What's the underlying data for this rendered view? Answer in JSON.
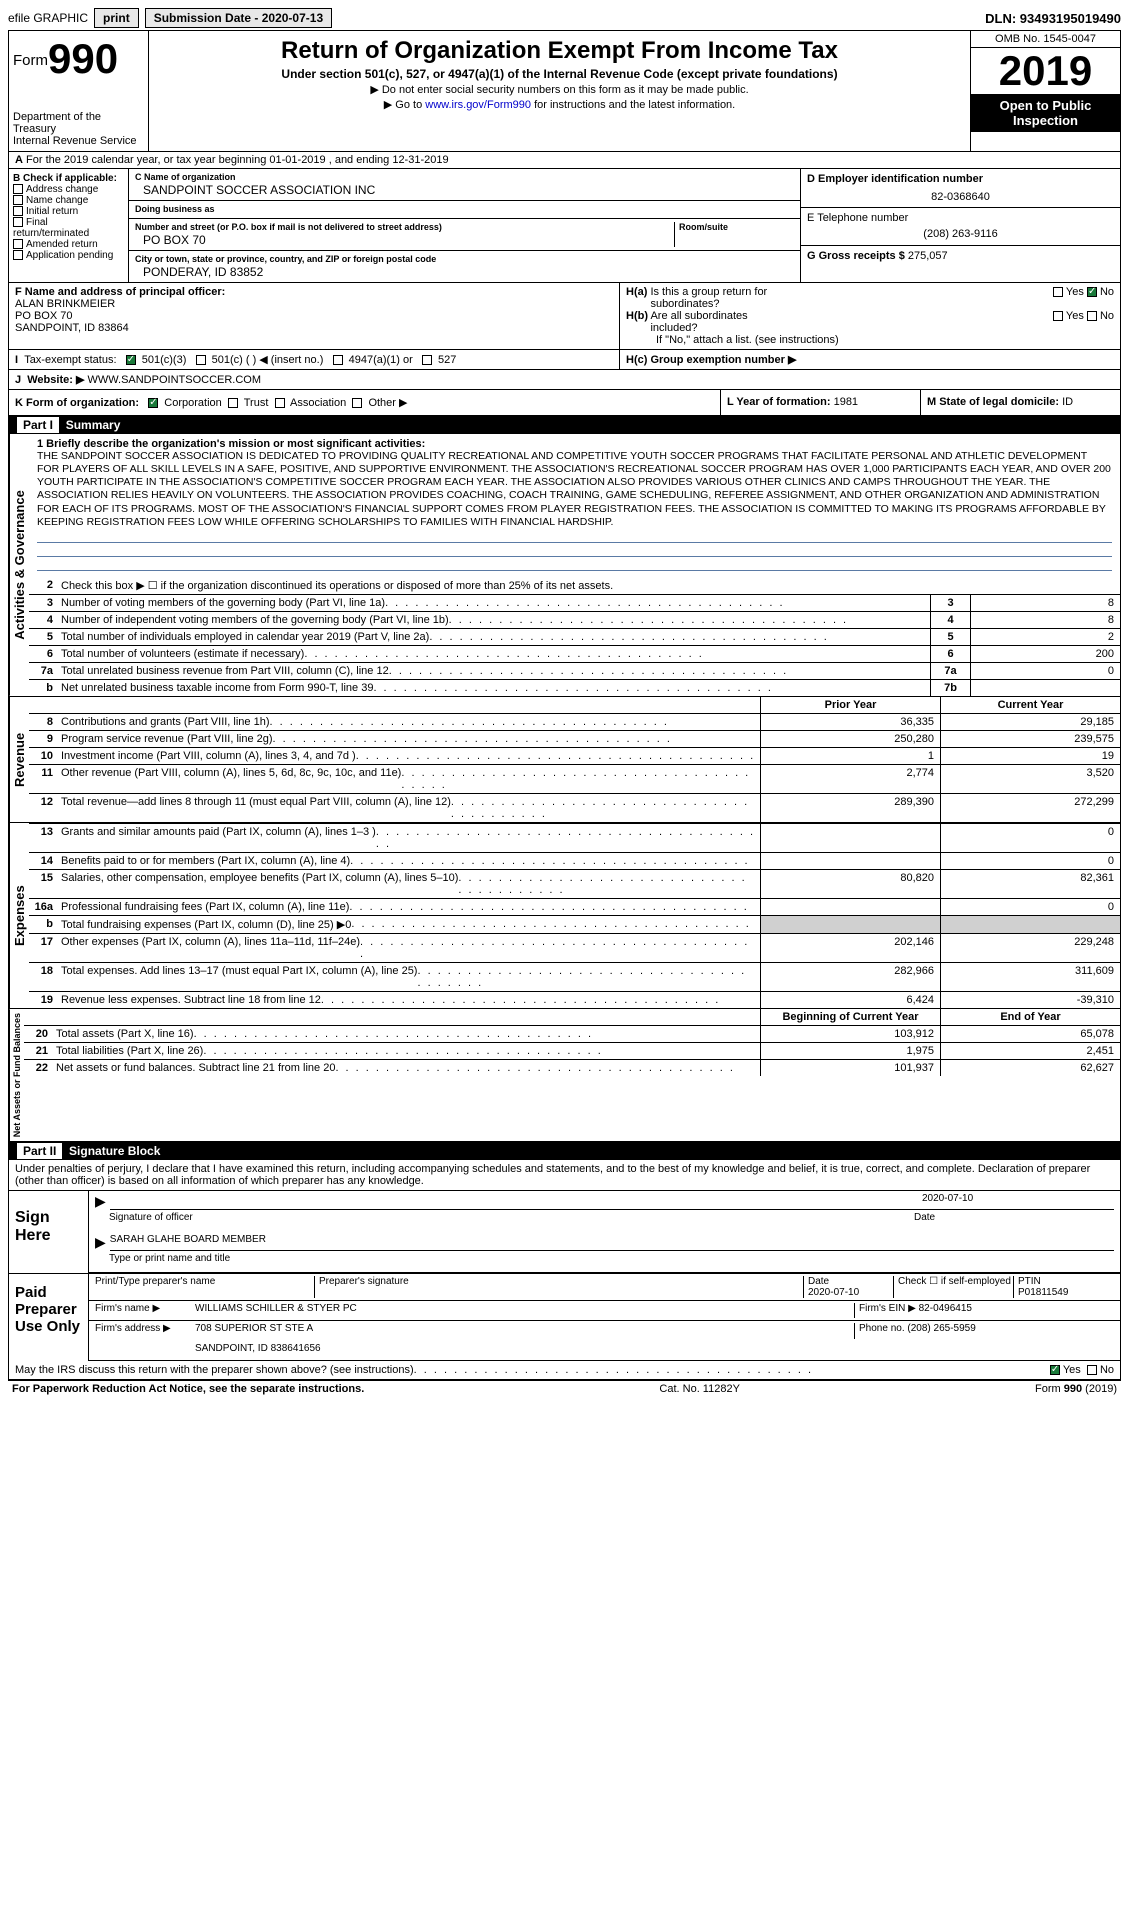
{
  "topbar": {
    "efile": "efile GRAPHIC",
    "print": "print",
    "sub_label": "Submission Date - ",
    "sub_date": "2020-07-13",
    "dln": "DLN: 93493195019490"
  },
  "header": {
    "form_prefix": "Form",
    "form_num": "990",
    "dept": "Department of the Treasury\nInternal Revenue Service",
    "title": "Return of Organization Exempt From Income Tax",
    "subtitle": "Under section 501(c), 527, or 4947(a)(1) of the Internal Revenue Code (except private foundations)",
    "note1": "▶ Do not enter social security numbers on this form as it may be made public.",
    "note2_pre": "▶ Go to ",
    "note2_link": "www.irs.gov/Form990",
    "note2_post": " for instructions and the latest information.",
    "omb": "OMB No. 1545-0047",
    "year": "2019",
    "inspect": "Open to Public Inspection"
  },
  "rowA": {
    "text": "For the 2019 calendar year, or tax year beginning 01-01-2019   , and ending 12-31-2019",
    "prefix": "A"
  },
  "colB": {
    "title": "B Check if applicable:",
    "opts": [
      "Address change",
      "Name change",
      "Initial return",
      "Final return/terminated",
      "Amended return",
      "Application pending"
    ]
  },
  "colC": {
    "name_lbl": "C Name of organization",
    "name": "SANDPOINT SOCCER ASSOCIATION INC",
    "dba_lbl": "Doing business as",
    "dba": "",
    "addr_lbl": "Number and street (or P.O. box if mail is not delivered to street address)",
    "addr": "PO BOX 70",
    "room_lbl": "Room/suite",
    "city_lbl": "City or town, state or province, country, and ZIP or foreign postal code",
    "city": "PONDERAY, ID  83852"
  },
  "colD": {
    "ein_lbl": "D Employer identification number",
    "ein": "82-0368640",
    "tel_lbl": "E Telephone number",
    "tel": "(208) 263-9116",
    "gross_lbl": "G Gross receipts $",
    "gross": "275,057"
  },
  "rowF": {
    "lbl": "F  Name and address of principal officer:",
    "name": "ALAN BRINKMEIER",
    "addr1": "PO BOX 70",
    "addr2": "SANDPOINT, ID  83864"
  },
  "rowH": {
    "ha": "H(a)  Is this a group return for subordinates?",
    "hb": "H(b)  Are all subordinates included?",
    "hb_note": "If \"No,\" attach a list. (see instructions)",
    "hc": "H(c)  Group exemption number ▶",
    "yes": "Yes",
    "no": "No"
  },
  "rowI": {
    "lbl": "Tax-exempt status:",
    "o1": "501(c)(3)",
    "o2": "501(c) (   ) ◀ (insert no.)",
    "o3": "4947(a)(1) or",
    "o4": "527"
  },
  "rowJ": {
    "lbl": "Website: ▶",
    "val": "WWW.SANDPOINTSOCCER.COM"
  },
  "rowK": {
    "lbl": "K Form of organization:",
    "o1": "Corporation",
    "o2": "Trust",
    "o3": "Association",
    "o4": "Other ▶"
  },
  "rowL": {
    "lbl": "L Year of formation:",
    "val": "1981"
  },
  "rowM": {
    "lbl": "M State of legal domicile:",
    "val": "ID"
  },
  "part1": {
    "num": "Part I",
    "title": "Summary"
  },
  "mission": {
    "lbl": "1  Briefly describe the organization's mission or most significant activities:",
    "text": "THE SANDPOINT SOCCER ASSOCIATION IS DEDICATED TO PROVIDING QUALITY RECREATIONAL AND COMPETITIVE YOUTH SOCCER PROGRAMS THAT FACILITATE PERSONAL AND ATHLETIC DEVELOPMENT FOR PLAYERS OF ALL SKILL LEVELS IN A SAFE, POSITIVE, AND SUPPORTIVE ENVIRONMENT. THE ASSOCIATION'S RECREATIONAL SOCCER PROGRAM HAS OVER 1,000 PARTICIPANTS EACH YEAR, AND OVER 200 YOUTH PARTICIPATE IN THE ASSOCIATION'S COMPETITIVE SOCCER PROGRAM EACH YEAR. THE ASSOCIATION ALSO PROVIDES VARIOUS OTHER CLINICS AND CAMPS THROUGHOUT THE YEAR. THE ASSOCIATION RELIES HEAVILY ON VOLUNTEERS. THE ASSOCIATION PROVIDES COACHING, COACH TRAINING, GAME SCHEDULING, REFEREE ASSIGNMENT, AND OTHER ORGANIZATION AND ADMINISTRATION FOR EACH OF ITS PROGRAMS. MOST OF THE ASSOCIATION'S FINANCIAL SUPPORT COMES FROM PLAYER REGISTRATION FEES. THE ASSOCIATION IS COMMITTED TO MAKING ITS PROGRAMS AFFORDABLE BY KEEPING REGISTRATION FEES LOW WHILE OFFERING SCHOLARSHIPS TO FAMILIES WITH FINANCIAL HARDSHIP."
  },
  "line2": "Check this box ▶ ☐ if the organization discontinued its operations or disposed of more than 25% of its net assets.",
  "gov_lines": [
    {
      "n": "3",
      "d": "Number of voting members of the governing body (Part VI, line 1a)",
      "box": "3",
      "v": "8"
    },
    {
      "n": "4",
      "d": "Number of independent voting members of the governing body (Part VI, line 1b)",
      "box": "4",
      "v": "8"
    },
    {
      "n": "5",
      "d": "Total number of individuals employed in calendar year 2019 (Part V, line 2a)",
      "box": "5",
      "v": "2"
    },
    {
      "n": "6",
      "d": "Total number of volunteers (estimate if necessary)",
      "box": "6",
      "v": "200"
    },
    {
      "n": "7a",
      "d": "Total unrelated business revenue from Part VIII, column (C), line 12",
      "box": "7a",
      "v": "0"
    },
    {
      "n": "b",
      "d": "Net unrelated business taxable income from Form 990-T, line 39",
      "box": "7b",
      "v": ""
    }
  ],
  "rev_hdr": {
    "prior": "Prior Year",
    "curr": "Current Year"
  },
  "rev_lines": [
    {
      "n": "8",
      "d": "Contributions and grants (Part VIII, line 1h)",
      "p": "36,335",
      "c": "29,185"
    },
    {
      "n": "9",
      "d": "Program service revenue (Part VIII, line 2g)",
      "p": "250,280",
      "c": "239,575"
    },
    {
      "n": "10",
      "d": "Investment income (Part VIII, column (A), lines 3, 4, and 7d )",
      "p": "1",
      "c": "19"
    },
    {
      "n": "11",
      "d": "Other revenue (Part VIII, column (A), lines 5, 6d, 8c, 9c, 10c, and 11e)",
      "p": "2,774",
      "c": "3,520"
    },
    {
      "n": "12",
      "d": "Total revenue—add lines 8 through 11 (must equal Part VIII, column (A), line 12)",
      "p": "289,390",
      "c": "272,299"
    }
  ],
  "exp_lines": [
    {
      "n": "13",
      "d": "Grants and similar amounts paid (Part IX, column (A), lines 1–3 )",
      "p": "",
      "c": "0"
    },
    {
      "n": "14",
      "d": "Benefits paid to or for members (Part IX, column (A), line 4)",
      "p": "",
      "c": "0"
    },
    {
      "n": "15",
      "d": "Salaries, other compensation, employee benefits (Part IX, column (A), lines 5–10)",
      "p": "80,820",
      "c": "82,361"
    },
    {
      "n": "16a",
      "d": "Professional fundraising fees (Part IX, column (A), line 11e)",
      "p": "",
      "c": "0"
    },
    {
      "n": "b",
      "d": "Total fundraising expenses (Part IX, column (D), line 25) ▶0",
      "p": "SHADE",
      "c": "SHADE"
    },
    {
      "n": "17",
      "d": "Other expenses (Part IX, column (A), lines 11a–11d, 11f–24e)",
      "p": "202,146",
      "c": "229,248"
    },
    {
      "n": "18",
      "d": "Total expenses. Add lines 13–17 (must equal Part IX, column (A), line 25)",
      "p": "282,966",
      "c": "311,609"
    },
    {
      "n": "19",
      "d": "Revenue less expenses. Subtract line 18 from line 12",
      "p": "6,424",
      "c": "-39,310"
    }
  ],
  "na_hdr": {
    "beg": "Beginning of Current Year",
    "end": "End of Year"
  },
  "na_lines": [
    {
      "n": "20",
      "d": "Total assets (Part X, line 16)",
      "p": "103,912",
      "c": "65,078"
    },
    {
      "n": "21",
      "d": "Total liabilities (Part X, line 26)",
      "p": "1,975",
      "c": "2,451"
    },
    {
      "n": "22",
      "d": "Net assets or fund balances. Subtract line 21 from line 20",
      "p": "101,937",
      "c": "62,627"
    }
  ],
  "vlabels": {
    "gov": "Activities & Governance",
    "rev": "Revenue",
    "exp": "Expenses",
    "na": "Net Assets or Fund Balances"
  },
  "part2": {
    "num": "Part II",
    "title": "Signature Block"
  },
  "sig_decl": "Under penalties of perjury, I declare that I have examined this return, including accompanying schedules and statements, and to the best of my knowledge and belief, it is true, correct, and complete. Declaration of preparer (other than officer) is based on all information of which preparer has any knowledge.",
  "sign": {
    "here": "Sign Here",
    "officer_lbl": "Signature of officer",
    "date_lbl": "Date",
    "date": "2020-07-10",
    "name": "SARAH GLAHE  BOARD MEMBER",
    "name_lbl": "Type or print name and title"
  },
  "prep": {
    "title": "Paid Preparer Use Only",
    "name_lbl": "Print/Type preparer's name",
    "sig_lbl": "Preparer's signature",
    "date_lbl": "Date",
    "date": "2020-07-10",
    "self_lbl": "Check ☐ if self-employed",
    "ptin_lbl": "PTIN",
    "ptin": "P01811549",
    "firm_name_lbl": "Firm's name   ▶",
    "firm_name": "WILLIAMS SCHILLER & STYER PC",
    "firm_ein_lbl": "Firm's EIN ▶",
    "firm_ein": "82-0496415",
    "firm_addr_lbl": "Firm's address ▶",
    "firm_addr1": "708 SUPERIOR ST STE A",
    "firm_addr2": "SANDPOINT, ID  838641656",
    "phone_lbl": "Phone no.",
    "phone": "(208) 265-5959"
  },
  "discuss": "May the IRS discuss this return with the preparer shown above? (see instructions)",
  "footer": {
    "left": "For Paperwork Reduction Act Notice, see the separate instructions.",
    "mid": "Cat. No. 11282Y",
    "right": "Form 990 (2019)"
  }
}
